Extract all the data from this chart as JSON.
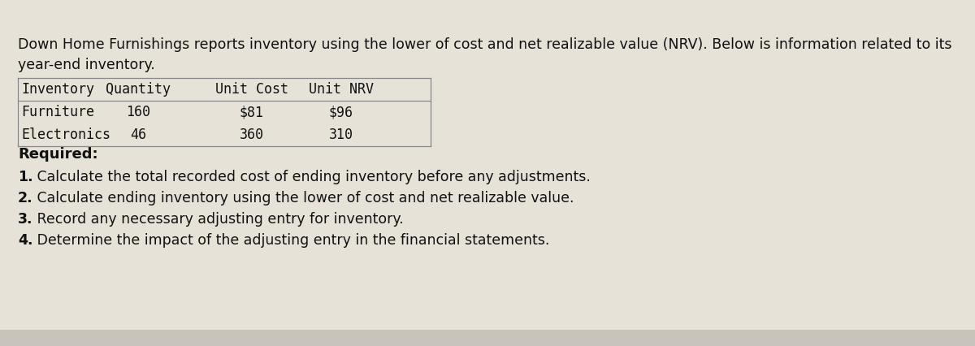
{
  "bg_color": "#c8c4bc",
  "card_color": "#e6e2d8",
  "intro_line1": "Down Home Furnishings reports inventory using the lower of cost and net realizable value (NRV). Below is information related to its",
  "intro_line2": "year-end inventory.",
  "table_headers": [
    "Inventory",
    "Quantity",
    "Unit Cost",
    "Unit NRV"
  ],
  "table_rows": [
    [
      "Furniture",
      "160",
      "$81",
      "$96"
    ],
    [
      "Electronics",
      "46",
      "360",
      "310"
    ]
  ],
  "required_label": "Required:",
  "required_items": [
    [
      "1.",
      " Calculate the total recorded cost of ending inventory before any adjustments."
    ],
    [
      "2.",
      " Calculate ending inventory using the lower of cost and net realizable value."
    ],
    [
      "3.",
      " Record any necessary adjusting entry for inventory."
    ],
    [
      "4.",
      " Determine the impact of the adjusting entry in the financial statements."
    ]
  ],
  "text_color": "#111111",
  "table_border_color": "#888888",
  "intro_fontsize": 12.5,
  "table_fontsize": 12.0,
  "required_label_fontsize": 13.0,
  "required_items_fontsize": 12.5
}
